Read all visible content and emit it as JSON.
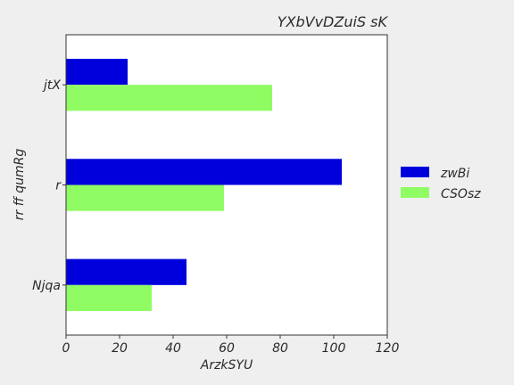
{
  "chart_data": {
    "type": "bar",
    "orientation": "horizontal",
    "title": "YXbVvDZuiS sK",
    "xlabel": "ArzkSYU",
    "ylabel": "rr ff qumRg",
    "categories": [
      "Njqa",
      "r",
      "jtX"
    ],
    "series": [
      {
        "name": "zwBi",
        "values": [
          45,
          103,
          23
        ],
        "color": "#0000dd"
      },
      {
        "name": "CSOsz",
        "values": [
          32,
          59,
          77
        ],
        "color": "#90fc64"
      }
    ],
    "xlim": [
      0,
      120
    ],
    "xticks": [
      0,
      20,
      40,
      60,
      80,
      100,
      120
    ],
    "grid": false,
    "legend_position": "right"
  }
}
